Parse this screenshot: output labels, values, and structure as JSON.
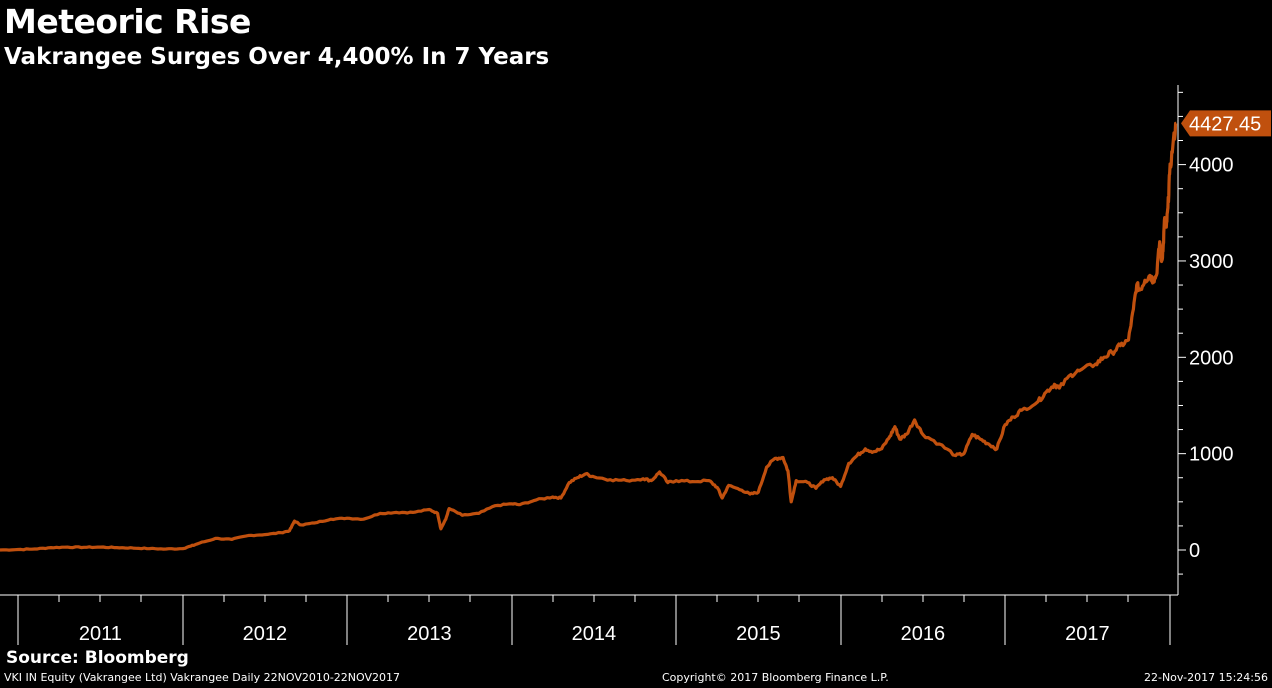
{
  "header": {
    "title": "Meteoric Rise",
    "subtitle": "Vakrangee Surges Over 4,400% In 7 Years"
  },
  "footer": {
    "source": "Source: Bloomberg",
    "security": "VKI IN Equity (Vakrangee Ltd) Vakrangee  Daily 22NOV2010-22NOV2017",
    "copyright": "Copyright© 2017 Bloomberg Finance L.P.",
    "timestamp": "22-Nov-2017 15:24:56"
  },
  "colors": {
    "background": "#000000",
    "line": "#c0500e",
    "text": "#ffffff",
    "axis": "#ffffff"
  },
  "chart_data": {
    "type": "line",
    "title": "Meteoric Rise",
    "subtitle": "Vakrangee Surges Over 4,400% In 7 Years",
    "xlabel": "",
    "ylabel": "",
    "xlim": [
      2010.89,
      2017.98
    ],
    "ylim": [
      -450,
      4900
    ],
    "y_ticks": [
      0,
      1000,
      2000,
      3000,
      4000
    ],
    "x_ticks": [
      "2011",
      "2012",
      "2013",
      "2014",
      "2015",
      "2016",
      "2017"
    ],
    "grid": false,
    "last_value_label": "4427.45",
    "series": [
      {
        "points": [
          [
            2010.89,
            0
          ],
          [
            2011.0,
            5
          ],
          [
            2011.1,
            10
          ],
          [
            2011.2,
            25
          ],
          [
            2011.3,
            30
          ],
          [
            2011.4,
            28
          ],
          [
            2011.5,
            30
          ],
          [
            2011.6,
            25
          ],
          [
            2011.7,
            20
          ],
          [
            2011.8,
            15
          ],
          [
            2011.9,
            10
          ],
          [
            2012.0,
            15
          ],
          [
            2012.05,
            40
          ],
          [
            2012.1,
            70
          ],
          [
            2012.2,
            120
          ],
          [
            2012.3,
            110
          ],
          [
            2012.4,
            150
          ],
          [
            2012.5,
            160
          ],
          [
            2012.6,
            180
          ],
          [
            2012.65,
            200
          ],
          [
            2012.68,
            300
          ],
          [
            2012.72,
            260
          ],
          [
            2012.8,
            280
          ],
          [
            2012.9,
            320
          ],
          [
            2013.0,
            330
          ],
          [
            2013.1,
            320
          ],
          [
            2013.2,
            380
          ],
          [
            2013.3,
            390
          ],
          [
            2013.4,
            390
          ],
          [
            2013.5,
            420
          ],
          [
            2013.55,
            380
          ],
          [
            2013.57,
            220
          ],
          [
            2013.6,
            320
          ],
          [
            2013.62,
            430
          ],
          [
            2013.7,
            360
          ],
          [
            2013.8,
            380
          ],
          [
            2013.9,
            460
          ],
          [
            2014.0,
            480
          ],
          [
            2014.05,
            470
          ],
          [
            2014.15,
            520
          ],
          [
            2014.25,
            550
          ],
          [
            2014.3,
            540
          ],
          [
            2014.35,
            700
          ],
          [
            2014.4,
            750
          ],
          [
            2014.45,
            790
          ],
          [
            2014.5,
            760
          ],
          [
            2014.6,
            730
          ],
          [
            2014.7,
            720
          ],
          [
            2014.8,
            740
          ],
          [
            2014.85,
            720
          ],
          [
            2014.9,
            810
          ],
          [
            2014.95,
            700
          ],
          [
            2015.0,
            720
          ],
          [
            2015.1,
            710
          ],
          [
            2015.2,
            720
          ],
          [
            2015.25,
            650
          ],
          [
            2015.28,
            540
          ],
          [
            2015.32,
            670
          ],
          [
            2015.4,
            620
          ],
          [
            2015.45,
            580
          ],
          [
            2015.5,
            600
          ],
          [
            2015.55,
            860
          ],
          [
            2015.6,
            950
          ],
          [
            2015.65,
            960
          ],
          [
            2015.68,
            820
          ],
          [
            2015.7,
            500
          ],
          [
            2015.73,
            720
          ],
          [
            2015.8,
            700
          ],
          [
            2015.85,
            640
          ],
          [
            2015.9,
            730
          ],
          [
            2015.95,
            750
          ],
          [
            2016.0,
            660
          ],
          [
            2016.05,
            900
          ],
          [
            2016.1,
            980
          ],
          [
            2016.15,
            1050
          ],
          [
            2016.2,
            1020
          ],
          [
            2016.25,
            1050
          ],
          [
            2016.3,
            1180
          ],
          [
            2016.33,
            1280
          ],
          [
            2016.36,
            1150
          ],
          [
            2016.4,
            1200
          ],
          [
            2016.45,
            1350
          ],
          [
            2016.5,
            1200
          ],
          [
            2016.6,
            1100
          ],
          [
            2016.7,
            980
          ],
          [
            2016.75,
            1000
          ],
          [
            2016.8,
            1200
          ],
          [
            2016.85,
            1150
          ],
          [
            2016.9,
            1100
          ],
          [
            2016.95,
            1050
          ],
          [
            2017.0,
            1300
          ],
          [
            2017.05,
            1380
          ],
          [
            2017.1,
            1450
          ],
          [
            2017.2,
            1540
          ],
          [
            2017.25,
            1640
          ],
          [
            2017.3,
            1720
          ],
          [
            2017.33,
            1680
          ],
          [
            2017.4,
            1820
          ],
          [
            2017.45,
            1860
          ],
          [
            2017.55,
            1930
          ],
          [
            2017.6,
            2000
          ],
          [
            2017.65,
            2050
          ],
          [
            2017.7,
            2120
          ],
          [
            2017.75,
            2180
          ],
          [
            2017.78,
            2500
          ],
          [
            2017.8,
            2750
          ],
          [
            2017.82,
            2700
          ],
          [
            2017.85,
            2800
          ],
          [
            2017.88,
            2850
          ],
          [
            2017.9,
            2800
          ],
          [
            2017.92,
            2850
          ],
          [
            2017.94,
            3200
          ],
          [
            2017.95,
            3000
          ],
          [
            2017.96,
            3100
          ],
          [
            2017.97,
            3450
          ],
          [
            2017.98,
            3350
          ],
          [
            2017.99,
            3550
          ],
          [
            2018.0,
            3900
          ],
          [
            2018.02,
            4200
          ],
          [
            2018.04,
            4427.45
          ]
        ]
      }
    ]
  }
}
